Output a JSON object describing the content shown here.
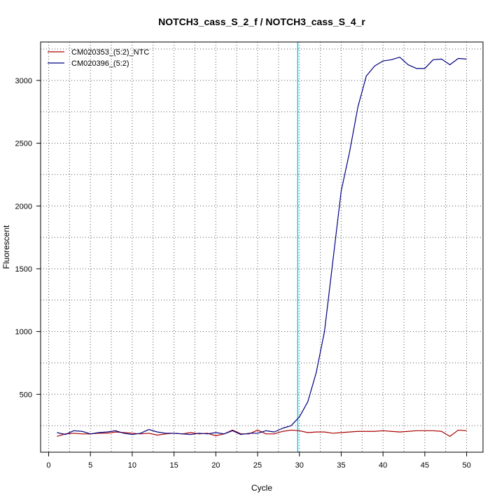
{
  "chart_data": {
    "type": "line",
    "title": "NOTCH3_cass_S_2_f / NOTCH3_cass_S_4_r",
    "xlabel": "Cycle",
    "ylabel": "Fluorescent",
    "xlim": [
      1,
      50
    ],
    "ylim": [
      160,
      3185
    ],
    "x_ticks": [
      0,
      5,
      10,
      15,
      20,
      25,
      30,
      35,
      40,
      45,
      50
    ],
    "y_ticks": [
      500,
      1000,
      1500,
      2000,
      2500,
      3000
    ],
    "grid": true,
    "legend_position": "top-left",
    "threshold_cycle": 29.8,
    "threshold_color": "#00ccee",
    "series": [
      {
        "name": "CM020353_(5:2)_NTC",
        "color": "#aa0000",
        "x": [
          1,
          2,
          3,
          4,
          5,
          6,
          7,
          8,
          9,
          10,
          11,
          12,
          13,
          14,
          15,
          16,
          17,
          18,
          19,
          20,
          21,
          22,
          23,
          24,
          25,
          26,
          27,
          28,
          29,
          30,
          31,
          32,
          33,
          34,
          35,
          36,
          37,
          38,
          39,
          40,
          41,
          42,
          43,
          44,
          45,
          46,
          47,
          48,
          49,
          50
        ],
        "values": [
          165,
          185,
          190,
          185,
          185,
          190,
          190,
          200,
          195,
          190,
          185,
          190,
          175,
          185,
          190,
          185,
          195,
          185,
          190,
          170,
          185,
          215,
          185,
          185,
          215,
          185,
          185,
          205,
          215,
          210,
          195,
          200,
          200,
          190,
          195,
          200,
          205,
          205,
          205,
          210,
          205,
          200,
          205,
          210,
          210,
          210,
          205,
          165,
          215,
          210
        ]
      },
      {
        "name": "CM020396_(5:2)",
        "color": "#000080",
        "x": [
          1,
          2,
          3,
          4,
          5,
          6,
          7,
          8,
          9,
          10,
          11,
          12,
          13,
          14,
          15,
          16,
          17,
          18,
          19,
          20,
          21,
          22,
          23,
          24,
          25,
          26,
          27,
          28,
          29,
          30,
          31,
          32,
          33,
          34,
          35,
          36,
          37,
          38,
          39,
          40,
          41,
          42,
          43,
          44,
          45,
          46,
          47,
          48,
          49,
          50
        ],
        "values": [
          195,
          180,
          210,
          205,
          185,
          195,
          200,
          210,
          190,
          180,
          190,
          220,
          200,
          190,
          190,
          185,
          180,
          190,
          185,
          195,
          185,
          210,
          180,
          190,
          190,
          210,
          200,
          230,
          250,
          320,
          440,
          670,
          1000,
          1560,
          2120,
          2430,
          2790,
          3035,
          3115,
          3155,
          3165,
          3185,
          3125,
          3095,
          3095,
          3165,
          3170,
          3125,
          3175,
          3170
        ]
      }
    ]
  }
}
